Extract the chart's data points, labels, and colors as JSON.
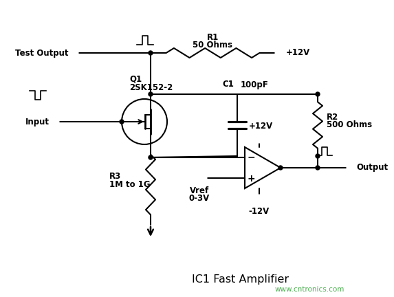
{
  "bg_color": "#ffffff",
  "line_color": "#000000",
  "text_color": "#000000",
  "watermark_color": "#4caf50",
  "title": "IC1 Fast Amplifier",
  "watermark": "www.cntronics.com",
  "labels": {
    "test_output": "Test Output",
    "input": "Input",
    "r1_line1": "R1",
    "r1_line2": "50 Ohms",
    "r2_line1": "R2",
    "r2_line2": "500 Ohms",
    "r3_line1": "R3",
    "r3_line2": "1M to 1G",
    "c1": "C1",
    "c1_val": "100pF",
    "q1_line1": "Q1",
    "q1_line2": "2SK152-2",
    "vref_line1": "Vref",
    "vref_line2": "0-3V",
    "v12p_top": "+12V",
    "v12p_mid": "+12V",
    "v12n": "-12V",
    "output": "Output"
  },
  "figsize": [
    5.73,
    4.32
  ],
  "dpi": 100
}
